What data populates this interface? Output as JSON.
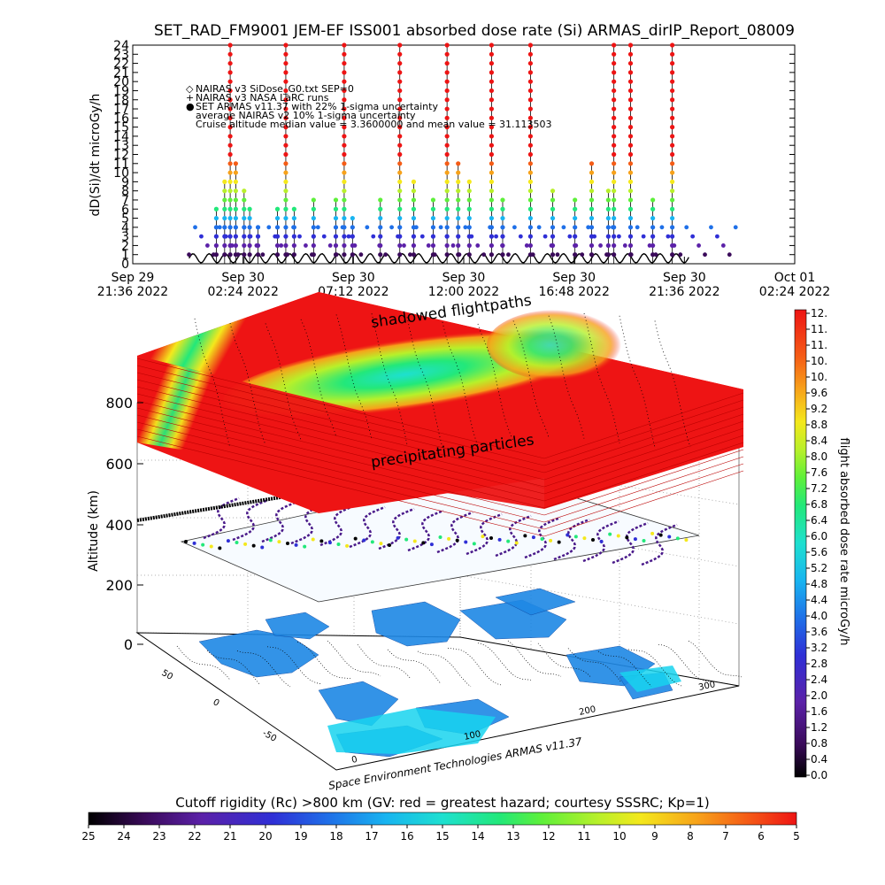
{
  "title": "SET_RAD_FM9001   JEM-EF ISS001 absorbed dose rate (Si) ARMAS_dirIP_Report_08009",
  "chart_data": [
    {
      "type": "scatter",
      "ylabel": "dD(Si)/dt microGy/h",
      "ylim": [
        0,
        24
      ],
      "yticks": [
        "0",
        "1",
        "2",
        "3",
        "4",
        "5",
        "6",
        "7",
        "8",
        "9",
        "10",
        "11",
        "12",
        "13",
        "14",
        "15",
        "16",
        "17",
        "18",
        "19",
        "20",
        "21",
        "22",
        "23",
        "24"
      ],
      "xticks": [
        {
          "line1": "Sep 29",
          "line2": "21:36 2022"
        },
        {
          "line1": "Sep 30",
          "line2": "02:24 2022"
        },
        {
          "line1": "Sep 30",
          "line2": "07:12 2022"
        },
        {
          "line1": "Sep 30",
          "line2": "12:00 2022"
        },
        {
          "line1": "Sep 30",
          "line2": "16:48 2022"
        },
        {
          "line1": "Sep 30",
          "line2": "21:36 2022"
        },
        {
          "line1": "Oct 01",
          "line2": "02:24 2022"
        }
      ],
      "legend": [
        {
          "symbol": "◇",
          "text": "NAIRAS v3 SiDose_G0.txt SEP=0"
        },
        {
          "symbol": "+",
          "text": "NAIRAS v3 NASA LaRC runs"
        },
        {
          "symbol": "●",
          "text": "SET ARMAS v11.37 with 22% 1-sigma uncertainty"
        },
        {
          "symbol": "",
          "text": "average NAIRAS v2 10% 1-sigma uncertainty"
        },
        {
          "symbol": "",
          "text": "Cruise altitude median value = 3.3600000 and mean value = 31.113503"
        }
      ],
      "series": [
        {
          "name": "SET ARMAS v11.37 with 22% 1-sigma uncertainty",
          "peaks": [
            {
              "x": 0.055,
              "y": 6
            },
            {
              "x": 0.07,
              "y": 9
            },
            {
              "x": 0.08,
              "y": 24
            },
            {
              "x": 0.09,
              "y": 11
            },
            {
              "x": 0.105,
              "y": 8
            },
            {
              "x": 0.115,
              "y": 6
            },
            {
              "x": 0.13,
              "y": 4
            },
            {
              "x": 0.165,
              "y": 6
            },
            {
              "x": 0.18,
              "y": 24
            },
            {
              "x": 0.195,
              "y": 6
            },
            {
              "x": 0.23,
              "y": 7
            },
            {
              "x": 0.27,
              "y": 7
            },
            {
              "x": 0.285,
              "y": 24
            },
            {
              "x": 0.3,
              "y": 5
            },
            {
              "x": 0.35,
              "y": 7
            },
            {
              "x": 0.385,
              "y": 24
            },
            {
              "x": 0.41,
              "y": 9
            },
            {
              "x": 0.445,
              "y": 7
            },
            {
              "x": 0.47,
              "y": 24
            },
            {
              "x": 0.49,
              "y": 11
            },
            {
              "x": 0.51,
              "y": 9
            },
            {
              "x": 0.55,
              "y": 24
            },
            {
              "x": 0.57,
              "y": 7
            },
            {
              "x": 0.62,
              "y": 24
            },
            {
              "x": 0.66,
              "y": 8
            },
            {
              "x": 0.7,
              "y": 7
            },
            {
              "x": 0.73,
              "y": 11
            },
            {
              "x": 0.76,
              "y": 8
            },
            {
              "x": 0.77,
              "y": 24
            },
            {
              "x": 0.8,
              "y": 24
            },
            {
              "x": 0.84,
              "y": 7
            },
            {
              "x": 0.875,
              "y": 24
            }
          ]
        }
      ]
    },
    {
      "type": "heatmap",
      "zlabel": "Altitude (km)",
      "zticks": [
        "0",
        "200",
        "400",
        "600",
        "800"
      ],
      "xticks": [
        "0",
        "100",
        "200",
        "300"
      ],
      "yticks": [
        "50",
        "0",
        "-50"
      ],
      "annotations": [
        "shadowed flightpaths",
        "precipitating particles"
      ],
      "credit": "Space Environment Technologies ARMAS v11.37"
    },
    {
      "type": "heatmap",
      "colorbar": "flight absorbed dose rate microGy/h",
      "ticks": [
        "0.0",
        "0.4",
        "0.8",
        "1.2",
        "1.6",
        "2.0",
        "2.4",
        "2.8",
        "3.2",
        "3.6",
        "4.0",
        "4.4",
        "4.8",
        "5.2",
        "5.6",
        "6.0",
        "6.4",
        "6.8",
        "7.2",
        "7.6",
        "8.0",
        "8.4",
        "8.8",
        "9.2",
        "9.6",
        "10.",
        "10.",
        "11.",
        "11.",
        "12."
      ]
    },
    {
      "type": "heatmap",
      "colorbar": "Cutoff rigidity (Rc) >800 km (GV: red = greatest hazard; courtesy SSSRC; Kp=1)",
      "ticks": [
        "25",
        "24",
        "23",
        "22",
        "21",
        "20",
        "19",
        "18",
        "17",
        "16",
        "15",
        "14",
        "13",
        "12",
        "11",
        "10",
        "9",
        "8",
        "7",
        "6",
        "5"
      ]
    }
  ],
  "colors": {
    "rainbow": [
      "#000000",
      "#3a0a5a",
      "#5b21a8",
      "#2f2fd6",
      "#1f70e8",
      "#18b4f0",
      "#1ee0d0",
      "#22e87a",
      "#5ef03a",
      "#b8f02a",
      "#f4e81c",
      "#f7a21a",
      "#f55c16",
      "#ee1414"
    ]
  }
}
